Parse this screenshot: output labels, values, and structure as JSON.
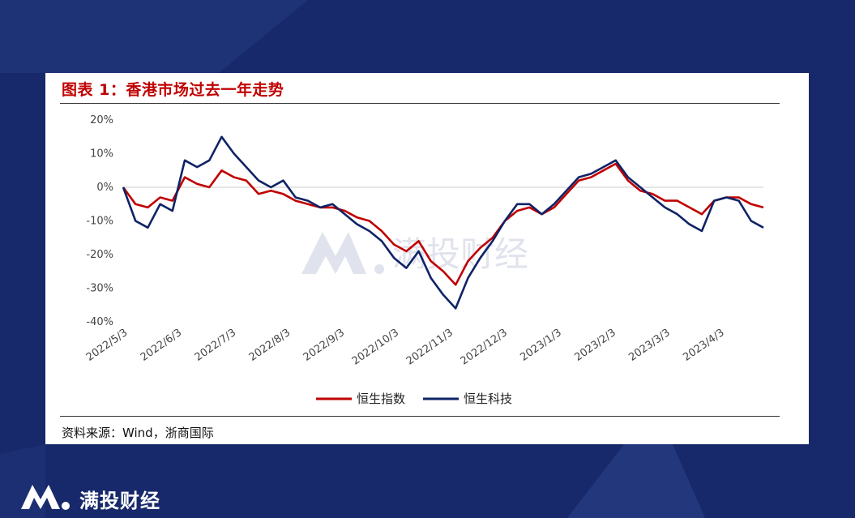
{
  "title": "图表 1：香港市场过去一年走势",
  "source": "资料来源：Wind，浙商国际",
  "watermark": "满投财经",
  "brand": {
    "name": "满投财经",
    "logo_icon": "manTou-logo-icon"
  },
  "colors": {
    "background": "#17296a",
    "hsi": "#c00000",
    "hstech": "#0f2366"
  },
  "chart_data": {
    "type": "line",
    "title": "",
    "xlabel": "",
    "ylabel": "",
    "ylim": [
      -0.4,
      0.2
    ],
    "yticks": [
      "20%",
      "10%",
      "0%",
      "-10%",
      "-20%",
      "-30%",
      "-40%"
    ],
    "ytick_values": [
      0.2,
      0.1,
      0.0,
      -0.1,
      -0.2,
      -0.3,
      -0.4
    ],
    "xticks": [
      "2022/5/3",
      "2022/6/3",
      "2022/7/3",
      "2022/8/3",
      "2022/9/3",
      "2022/10/3",
      "2022/11/3",
      "2022/12/3",
      "2023/1/3",
      "2023/2/3",
      "2023/3/3",
      "2023/4/3"
    ],
    "x": [
      "2022/5/3",
      "2022/5/10",
      "2022/5/17",
      "2022/5/24",
      "2022/5/31",
      "2022/6/7",
      "2022/6/14",
      "2022/6/21",
      "2022/6/28",
      "2022/7/5",
      "2022/7/12",
      "2022/7/19",
      "2022/7/26",
      "2022/8/2",
      "2022/8/9",
      "2022/8/16",
      "2022/8/23",
      "2022/8/30",
      "2022/9/6",
      "2022/9/13",
      "2022/9/20",
      "2022/9/27",
      "2022/10/4",
      "2022/10/11",
      "2022/10/18",
      "2022/10/25",
      "2022/11/1",
      "2022/11/8",
      "2022/11/15",
      "2022/11/22",
      "2022/11/29",
      "2022/12/6",
      "2022/12/13",
      "2022/12/20",
      "2022/12/27",
      "2023/1/3",
      "2023/1/10",
      "2023/1/17",
      "2023/1/24",
      "2023/1/31",
      "2023/2/7",
      "2023/2/14",
      "2023/2/21",
      "2023/2/28",
      "2023/3/7",
      "2023/3/14",
      "2023/3/21",
      "2023/3/28",
      "2023/4/4",
      "2023/4/11",
      "2023/4/18",
      "2023/4/25",
      "2023/5/2"
    ],
    "legend_position": "bottom",
    "series": [
      {
        "name": "恒生指数",
        "color": "#c00000",
        "values": [
          0.0,
          -0.05,
          -0.06,
          -0.03,
          -0.04,
          0.03,
          0.01,
          0.0,
          0.05,
          0.03,
          0.02,
          -0.02,
          -0.01,
          -0.02,
          -0.04,
          -0.05,
          -0.06,
          -0.06,
          -0.07,
          -0.09,
          -0.1,
          -0.13,
          -0.17,
          -0.19,
          -0.16,
          -0.22,
          -0.25,
          -0.29,
          -0.22,
          -0.18,
          -0.15,
          -0.1,
          -0.07,
          -0.06,
          -0.08,
          -0.06,
          -0.02,
          0.02,
          0.03,
          0.05,
          0.07,
          0.02,
          -0.01,
          -0.02,
          -0.04,
          -0.04,
          -0.06,
          -0.08,
          -0.04,
          -0.03,
          -0.03,
          -0.05,
          -0.06
        ]
      },
      {
        "name": "恒生科技",
        "color": "#0f2366",
        "values": [
          0.0,
          -0.1,
          -0.12,
          -0.05,
          -0.07,
          0.08,
          0.06,
          0.08,
          0.15,
          0.1,
          0.06,
          0.02,
          0.0,
          0.02,
          -0.03,
          -0.04,
          -0.06,
          -0.05,
          -0.08,
          -0.11,
          -0.13,
          -0.16,
          -0.21,
          -0.24,
          -0.19,
          -0.27,
          -0.32,
          -0.36,
          -0.27,
          -0.21,
          -0.16,
          -0.1,
          -0.05,
          -0.05,
          -0.08,
          -0.05,
          -0.01,
          0.03,
          0.04,
          0.06,
          0.08,
          0.03,
          0.0,
          -0.03,
          -0.06,
          -0.08,
          -0.11,
          -0.13,
          -0.04,
          -0.03,
          -0.04,
          -0.1,
          -0.12
        ]
      }
    ]
  }
}
